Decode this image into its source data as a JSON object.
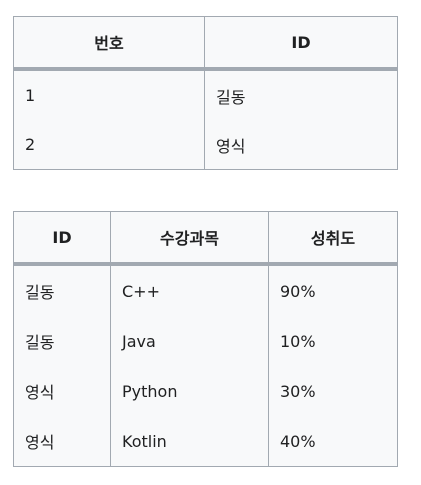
{
  "users_table": {
    "headers": [
      "번호",
      "ID"
    ],
    "rows": [
      [
        "1",
        "길동"
      ],
      [
        "2",
        "영식"
      ]
    ]
  },
  "scores_table": {
    "headers": [
      "ID",
      "수강과목",
      "성취도"
    ],
    "rows": [
      [
        "길동",
        "C++",
        "90%"
      ],
      [
        "길동",
        "Java",
        "10%"
      ],
      [
        "영식",
        "Python",
        "30%"
      ],
      [
        "영식",
        "Kotlin",
        "40%"
      ]
    ]
  }
}
